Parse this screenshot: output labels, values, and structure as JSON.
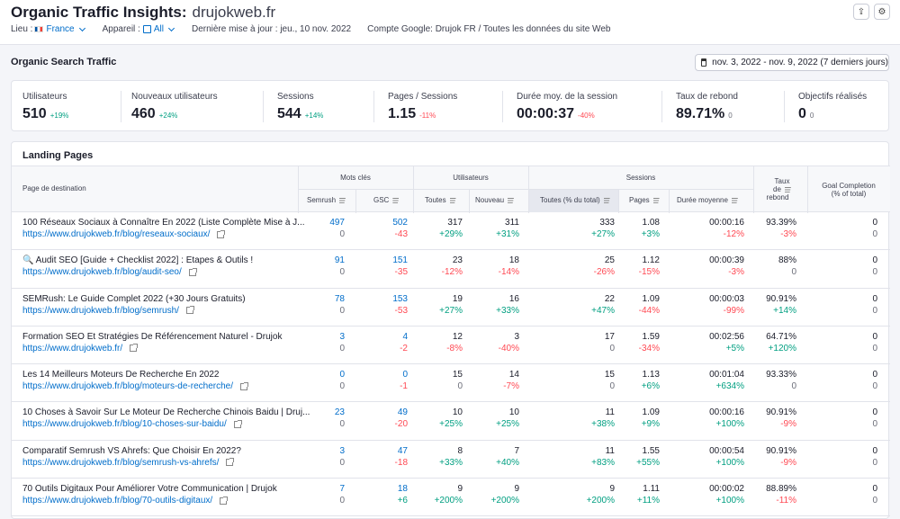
{
  "header": {
    "title": "Organic Traffic Insights:",
    "domain": "drujokweb.fr",
    "lieu_label": "Lieu :",
    "lieu_value": "France",
    "appareil_label": "Appareil :",
    "appareil_value": "All",
    "last_update": "Dernière mise à jour : jeu., 10 nov. 2022",
    "google_account": "Compte Google: Drujok FR / Toutes les données du site Web",
    "export_icon": "export-icon",
    "settings_icon": "gear-icon"
  },
  "section": {
    "title": "Organic Search Traffic",
    "date_range": "nov. 3, 2022 - nov. 9, 2022 (7 derniers jours)"
  },
  "kpis": [
    {
      "label": "Utilisateurs",
      "value": "510",
      "change": "+19%",
      "tone": "pos"
    },
    {
      "label": "Nouveaux utilisateurs",
      "value": "460",
      "change": "+24%",
      "tone": "pos"
    },
    {
      "label": "Sessions",
      "value": "544",
      "change": "+14%",
      "tone": "pos"
    },
    {
      "label": "Pages / Sessions",
      "value": "1.15",
      "change": "-11%",
      "tone": "neg"
    },
    {
      "label": "Durée moy. de la session",
      "value": "00:00:37",
      "change": "-40%",
      "tone": "neg"
    },
    {
      "label": "Taux de rebond",
      "value": "89.71%",
      "change": "0",
      "tone": "grey"
    },
    {
      "label": "Objectifs réalisés",
      "value": "0",
      "change": "0",
      "tone": "grey"
    }
  ],
  "table": {
    "title": "Landing Pages",
    "group_headers": {
      "keywords": "Mots clés",
      "users": "Utilisateurs",
      "sessions": "Sessions"
    },
    "columns": {
      "page": "Page de destination",
      "semrush": "Semrush",
      "gsc": "GSC",
      "users_all": "Toutes",
      "users_new": "Nouveau",
      "sessions_all": "Toutes (% du total)",
      "pages": "Pages",
      "duration": "Durée moyenne",
      "bounce_1": "Taux",
      "bounce_2": "de",
      "bounce_3": "rebond",
      "goal_1": "Goal Completion",
      "goal_2": "(% of total)"
    },
    "rows": [
      {
        "name": "100 Réseaux Sociaux à Connaître En 2022 (Liste Complète Mise à J...",
        "url": "https://www.drujokweb.fr/blog/reseaux-sociaux/",
        "semrush": "497",
        "semrush_c": "0",
        "gsc": "502",
        "gsc_c": "-43",
        "users": "317",
        "users_c": "+29%",
        "new": "311",
        "new_c": "+31%",
        "sessions": "333",
        "sessions_c": "+27%",
        "pages": "1.08",
        "pages_c": "+3%",
        "dur": "00:00:16",
        "dur_c": "-12%",
        "bounce": "93.39%",
        "bounce_c": "-3%",
        "goal": "0",
        "goal_c": "0"
      },
      {
        "name": "🔍 Audit SEO [Guide + Checklist 2022] : Etapes & Outils !",
        "url": "https://www.drujokweb.fr/blog/audit-seo/",
        "semrush": "91",
        "semrush_c": "0",
        "gsc": "151",
        "gsc_c": "-35",
        "users": "23",
        "users_c": "-12%",
        "new": "18",
        "new_c": "-14%",
        "sessions": "25",
        "sessions_c": "-26%",
        "pages": "1.12",
        "pages_c": "-15%",
        "dur": "00:00:39",
        "dur_c": "-3%",
        "bounce": "88%",
        "bounce_c": "0",
        "goal": "0",
        "goal_c": "0"
      },
      {
        "name": "SEMRush: Le Guide Complet 2022 (+30 Jours Gratuits)",
        "url": "https://www.drujokweb.fr/blog/semrush/",
        "semrush": "78",
        "semrush_c": "0",
        "gsc": "153",
        "gsc_c": "-53",
        "users": "19",
        "users_c": "+27%",
        "new": "16",
        "new_c": "+33%",
        "sessions": "22",
        "sessions_c": "+47%",
        "pages": "1.09",
        "pages_c": "-44%",
        "dur": "00:00:03",
        "dur_c": "-99%",
        "bounce": "90.91%",
        "bounce_c": "+14%",
        "goal": "0",
        "goal_c": "0"
      },
      {
        "name": "Formation SEO Et Stratégies De Référencement Naturel - Drujok",
        "url": "https://www.drujokweb.fr/",
        "semrush": "3",
        "semrush_c": "0",
        "gsc": "4",
        "gsc_c": "-2",
        "users": "12",
        "users_c": "-8%",
        "new": "3",
        "new_c": "-40%",
        "sessions": "17",
        "sessions_c": "0",
        "pages": "1.59",
        "pages_c": "-34%",
        "dur": "00:02:56",
        "dur_c": "+5%",
        "bounce": "64.71%",
        "bounce_c": "+120%",
        "goal": "0",
        "goal_c": "0"
      },
      {
        "name": "Les 14 Meilleurs Moteurs De Recherche En 2022",
        "url": "https://www.drujokweb.fr/blog/moteurs-de-recherche/",
        "semrush": "0",
        "semrush_c": "0",
        "gsc": "0",
        "gsc_c": "-1",
        "users": "15",
        "users_c": "0",
        "new": "14",
        "new_c": "-7%",
        "sessions": "15",
        "sessions_c": "0",
        "pages": "1.13",
        "pages_c": "+6%",
        "dur": "00:01:04",
        "dur_c": "+634%",
        "bounce": "93.33%",
        "bounce_c": "0",
        "goal": "0",
        "goal_c": "0"
      },
      {
        "name": "10 Choses à Savoir Sur Le Moteur De Recherche Chinois Baidu | Druj...",
        "url": "https://www.drujokweb.fr/blog/10-choses-sur-baidu/",
        "semrush": "23",
        "semrush_c": "0",
        "gsc": "49",
        "gsc_c": "-20",
        "users": "10",
        "users_c": "+25%",
        "new": "10",
        "new_c": "+25%",
        "sessions": "11",
        "sessions_c": "+38%",
        "pages": "1.09",
        "pages_c": "+9%",
        "dur": "00:00:16",
        "dur_c": "+100%",
        "bounce": "90.91%",
        "bounce_c": "-9%",
        "goal": "0",
        "goal_c": "0"
      },
      {
        "name": "Comparatif Semrush VS Ahrefs: Que Choisir En 2022?",
        "url": "https://www.drujokweb.fr/blog/semrush-vs-ahrefs/",
        "semrush": "3",
        "semrush_c": "0",
        "gsc": "47",
        "gsc_c": "-18",
        "users": "8",
        "users_c": "+33%",
        "new": "7",
        "new_c": "+40%",
        "sessions": "11",
        "sessions_c": "+83%",
        "pages": "1.55",
        "pages_c": "+55%",
        "dur": "00:00:54",
        "dur_c": "+100%",
        "bounce": "90.91%",
        "bounce_c": "-9%",
        "goal": "0",
        "goal_c": "0"
      },
      {
        "name": "70 Outils Digitaux Pour Améliorer Votre Communication | Drujok",
        "url": "https://www.drujokweb.fr/blog/70-outils-digitaux/",
        "semrush": "7",
        "semrush_c": "0",
        "gsc": "18",
        "gsc_c": "+6",
        "users": "9",
        "users_c": "+200%",
        "new": "9",
        "new_c": "+200%",
        "sessions": "9",
        "sessions_c": "+200%",
        "pages": "1.11",
        "pages_c": "+11%",
        "dur": "00:00:02",
        "dur_c": "+100%",
        "bounce": "88.89%",
        "bounce_c": "-11%",
        "goal": "0",
        "goal_c": "0"
      }
    ]
  }
}
